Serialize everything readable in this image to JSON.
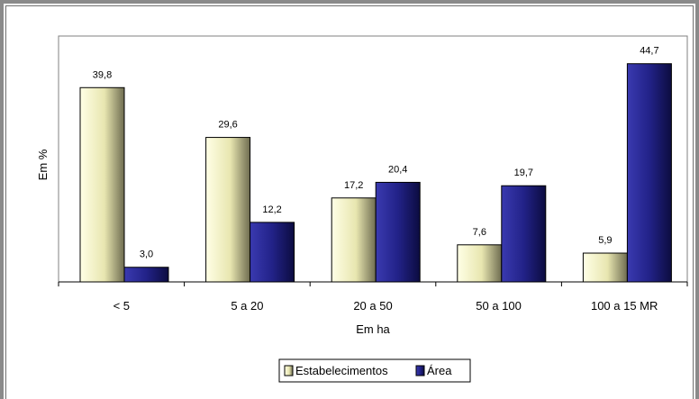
{
  "chart_data": {
    "type": "bar",
    "title": "",
    "xlabel": "Em ha",
    "ylabel": "Em %",
    "categories": [
      "< 5",
      "5 a 20",
      "20 a  50",
      "50 a 100",
      "100 a 15 MR"
    ],
    "series": [
      {
        "name": "Estabelecimentos",
        "values": [
          39.8,
          29.6,
          17.2,
          7.6,
          5.9
        ],
        "labels": [
          "39,8",
          "29,6",
          "17,2",
          "7,6",
          "5,9"
        ],
        "color": "#ffffcc"
      },
      {
        "name": "Área",
        "values": [
          3.0,
          12.2,
          20.4,
          19.7,
          44.7
        ],
        "labels": [
          "3,0",
          "12,2",
          "20,4",
          "19,7",
          "44,7"
        ],
        "color": "#1a1a80"
      }
    ],
    "ylim": [
      0,
      50
    ],
    "grid": false,
    "legend_position": "bottom"
  }
}
